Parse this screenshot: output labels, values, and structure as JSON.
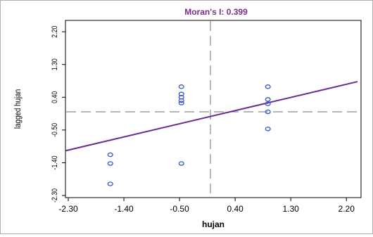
{
  "chart_data": {
    "type": "scatter",
    "title": "Moran's I: 0.399",
    "xlabel": "hujan",
    "ylabel": "lagged hujan",
    "xlim": [
      -2.3,
      2.3
    ],
    "ylim": [
      -2.3,
      2.3
    ],
    "x_ticks": [
      "-2.30",
      "-1.40",
      "-0.50",
      "0.40",
      "1.30",
      "2.20"
    ],
    "y_ticks": [
      "-2.30",
      "-1.40",
      "-0.50",
      "0.40",
      "1.30",
      "2.20"
    ],
    "points": [
      {
        "x": -1.62,
        "y": -1.18
      },
      {
        "x": -1.62,
        "y": -1.42
      },
      {
        "x": -1.62,
        "y": -1.98
      },
      {
        "x": -0.47,
        "y": 0.69
      },
      {
        "x": -0.47,
        "y": 0.49
      },
      {
        "x": -0.47,
        "y": 0.4
      },
      {
        "x": -0.47,
        "y": 0.31
      },
      {
        "x": -0.47,
        "y": 0.24
      },
      {
        "x": -0.47,
        "y": -1.42
      },
      {
        "x": 0.93,
        "y": 0.69
      },
      {
        "x": 0.93,
        "y": 0.34
      },
      {
        "x": 0.93,
        "y": 0.22
      },
      {
        "x": 0.93,
        "y": 0.0
      },
      {
        "x": 0.93,
        "y": -0.47
      }
    ],
    "regression_line": {
      "slope": 0.399,
      "intercept": -0.12
    },
    "ref_x": 0.0,
    "ref_y": 0.0,
    "colors": {
      "points": "#3355cc",
      "line": "#6a2c91",
      "title": "#7b2d8e",
      "reference": "#8a8a8a"
    }
  }
}
